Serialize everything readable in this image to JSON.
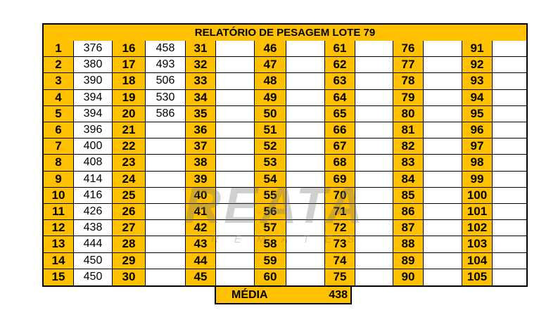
{
  "title": "RELATÓRIO DE PESAGEM LOTE  79",
  "weights": [
    "376",
    "380",
    "390",
    "394",
    "394",
    "396",
    "400",
    "408",
    "414",
    "416",
    "426",
    "438",
    "444",
    "450",
    "450",
    "458",
    "493",
    "506",
    "530",
    "586"
  ],
  "total_lots": 105,
  "average_label": "MÉDIA",
  "average_value": "438",
  "watermark": {
    "brand": "REATA",
    "sub": "REMATES"
  },
  "colors": {
    "header": "#FFC000",
    "border": "#000000"
  }
}
